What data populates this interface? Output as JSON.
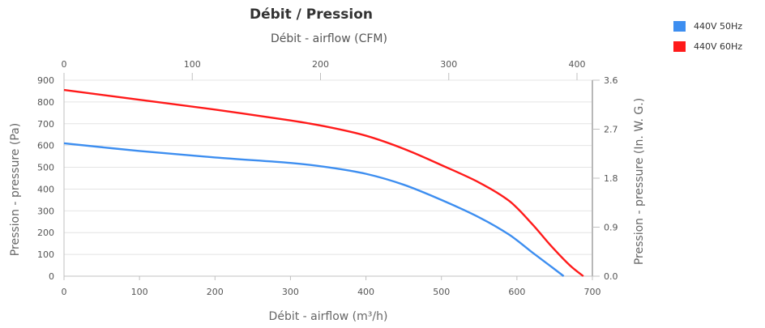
{
  "chart_data": {
    "type": "line",
    "title": "Débit / Pression",
    "subtitle": "Débit - airflow (CFM)",
    "xlabel": "Débit - airflow (m³/h)",
    "ylabel": "Pression - pressure (Pa)",
    "ylabel_right": "Pression - pressure (In. W. G.)",
    "xlim": [
      0,
      700
    ],
    "ylim": [
      0,
      900
    ],
    "x_ticks": [
      "0",
      "100",
      "200",
      "300",
      "400",
      "500",
      "600",
      "700"
    ],
    "y_ticks": [
      "0",
      "100",
      "200",
      "300",
      "400",
      "500",
      "600",
      "700",
      "800",
      "900"
    ],
    "x_top_ticks": [
      "0",
      "100",
      "200",
      "300",
      "400"
    ],
    "y_right_ticks": [
      "0.0",
      "0.9",
      "1.8",
      "2.7",
      "3.6"
    ],
    "grid": true,
    "legend_position": "top-right",
    "series": [
      {
        "name": "440V 50Hz",
        "color": "#3d8ef0",
        "points": [
          [
            0,
            610
          ],
          [
            100,
            575
          ],
          [
            200,
            545
          ],
          [
            300,
            520
          ],
          [
            350,
            500
          ],
          [
            400,
            470
          ],
          [
            450,
            420
          ],
          [
            500,
            350
          ],
          [
            550,
            270
          ],
          [
            590,
            190
          ],
          [
            620,
            110
          ],
          [
            645,
            45
          ],
          [
            662,
            0
          ]
        ]
      },
      {
        "name": "440V 60Hz",
        "color": "#ff1a1a",
        "points": [
          [
            0,
            855
          ],
          [
            100,
            810
          ],
          [
            200,
            765
          ],
          [
            300,
            715
          ],
          [
            350,
            685
          ],
          [
            400,
            645
          ],
          [
            450,
            585
          ],
          [
            500,
            510
          ],
          [
            550,
            430
          ],
          [
            590,
            345
          ],
          [
            620,
            240
          ],
          [
            645,
            140
          ],
          [
            670,
            50
          ],
          [
            688,
            0
          ]
        ]
      }
    ]
  }
}
